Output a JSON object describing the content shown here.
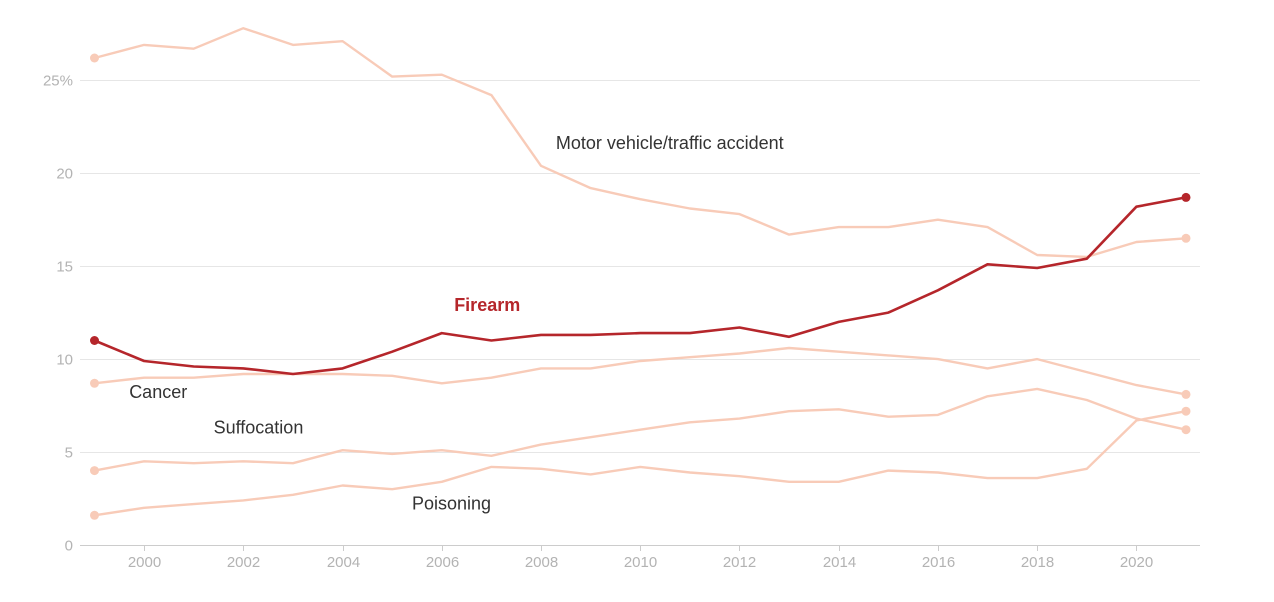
{
  "chart_data": {
    "type": "line",
    "title": "",
    "xlabel": "",
    "ylabel": "",
    "xlim": [
      1999,
      2021
    ],
    "ylim": [
      0,
      28
    ],
    "y_ticks": [
      {
        "value": 0,
        "label": "0"
      },
      {
        "value": 5,
        "label": "5"
      },
      {
        "value": 10,
        "label": "10"
      },
      {
        "value": 15,
        "label": "15"
      },
      {
        "value": 20,
        "label": "20"
      },
      {
        "value": 25,
        "label": "25%"
      }
    ],
    "x_ticks": [
      {
        "value": 2000,
        "label": "2000"
      },
      {
        "value": 2002,
        "label": "2002"
      },
      {
        "value": 2004,
        "label": "2004"
      },
      {
        "value": 2006,
        "label": "2006"
      },
      {
        "value": 2008,
        "label": "2008"
      },
      {
        "value": 2010,
        "label": "2010"
      },
      {
        "value": 2012,
        "label": "2012"
      },
      {
        "value": 2014,
        "label": "2014"
      },
      {
        "value": 2016,
        "label": "2016"
      },
      {
        "value": 2018,
        "label": "2018"
      },
      {
        "value": 2020,
        "label": "2020"
      }
    ],
    "grid": true,
    "x": [
      1999,
      2000,
      2001,
      2002,
      2003,
      2004,
      2005,
      2006,
      2007,
      2008,
      2009,
      2010,
      2011,
      2012,
      2013,
      2014,
      2015,
      2016,
      2017,
      2018,
      2019,
      2020,
      2021
    ],
    "series": [
      {
        "id": "motor-vehicle",
        "name": "Motor vehicle/traffic accident",
        "color": "#f8cbb8",
        "highlight": false,
        "label_anchor": {
          "x": 2008.3,
          "y": 21.3
        },
        "values": [
          26.2,
          26.9,
          26.7,
          27.8,
          26.9,
          27.1,
          25.2,
          25.3,
          24.2,
          20.4,
          19.2,
          18.6,
          18.1,
          17.8,
          16.7,
          17.1,
          17.1,
          17.5,
          17.1,
          15.6,
          15.5,
          16.3,
          16.5
        ]
      },
      {
        "id": "firearm",
        "name": "Firearm",
        "color": "#b5262b",
        "highlight": true,
        "label_anchor": {
          "x": 2006.25,
          "y": 12.6
        },
        "values": [
          11.0,
          9.9,
          9.6,
          9.5,
          9.2,
          9.5,
          10.4,
          11.4,
          11.0,
          11.3,
          11.3,
          11.4,
          11.4,
          11.7,
          11.2,
          12.0,
          12.5,
          13.7,
          15.1,
          14.9,
          15.4,
          18.2,
          18.7
        ]
      },
      {
        "id": "cancer",
        "name": "Cancer",
        "color": "#f8cbb8",
        "highlight": false,
        "label_anchor": {
          "x": 1999.7,
          "y": 7.9
        },
        "values": [
          8.7,
          9.0,
          9.0,
          9.2,
          9.2,
          9.2,
          9.1,
          8.7,
          9.0,
          9.5,
          9.5,
          9.9,
          10.1,
          10.3,
          10.6,
          10.4,
          10.2,
          10.0,
          9.5,
          10.0,
          9.3,
          8.6,
          8.1
        ]
      },
      {
        "id": "suffocation",
        "name": "Suffocation",
        "color": "#f8cbb8",
        "highlight": false,
        "label_anchor": {
          "x": 2001.4,
          "y": 6.0
        },
        "values": [
          4.0,
          4.5,
          4.4,
          4.5,
          4.4,
          5.1,
          4.9,
          5.1,
          4.8,
          5.4,
          5.8,
          6.2,
          6.6,
          6.8,
          7.2,
          7.3,
          6.9,
          7.0,
          8.0,
          8.4,
          7.8,
          6.8,
          6.2
        ]
      },
      {
        "id": "poisoning",
        "name": "Poisoning",
        "color": "#f8cbb8",
        "highlight": false,
        "label_anchor": {
          "x": 2005.4,
          "y": 1.9
        },
        "values": [
          1.6,
          2.0,
          2.2,
          2.4,
          2.7,
          3.2,
          3.0,
          3.4,
          4.2,
          4.1,
          3.8,
          4.2,
          3.9,
          3.7,
          3.4,
          3.4,
          4.0,
          3.9,
          3.6,
          3.6,
          4.1,
          6.7,
          7.2
        ]
      }
    ],
    "colors": {
      "grid": "#e6e6e6",
      "axis": "#cccccc",
      "tick_text": "#b3b3b3",
      "label_text": "#333333",
      "highlight": "#b5262b",
      "muted": "#f8cbb8"
    }
  }
}
